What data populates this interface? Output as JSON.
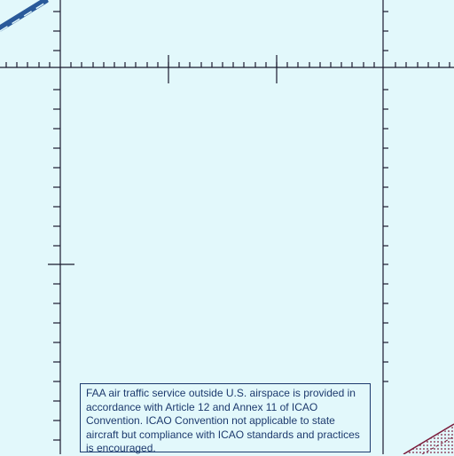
{
  "map": {
    "background_color": "#e2f8fb",
    "graticule_color": "#1a1a2e",
    "airway_color": "#2a5a9a",
    "boundary_color": "#7a1b3a",
    "notice": {
      "text": "FAA air traffic service outside U.S. airspace is provided in accordance with Article 12 and Annex 11 of ICAO Convention. ICAO Convention not applicable to state aircraft but compliance with ICAO standards and practices is encouraged.",
      "border_color": "#1d3a6e",
      "text_color": "#1d3a6e"
    }
  }
}
